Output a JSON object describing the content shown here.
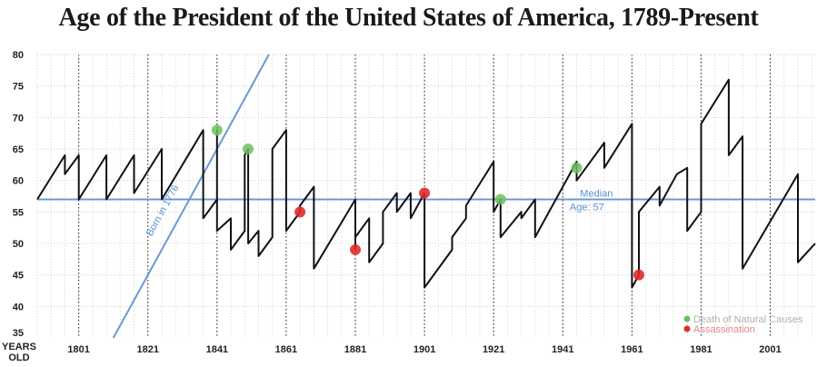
{
  "chart_data": {
    "type": "line",
    "title": "Age of the President of the United States of America, 1789-Present",
    "ylabel": [
      "YEARS",
      "OLD"
    ],
    "xlim": [
      1789,
      2014
    ],
    "ylim": [
      35,
      80
    ],
    "y_ticks": [
      35,
      40,
      45,
      50,
      55,
      60,
      65,
      70,
      75,
      80
    ],
    "x_ticks": [
      1801,
      1821,
      1841,
      1861,
      1881,
      1901,
      1921,
      1941,
      1961,
      1981,
      2001
    ],
    "grid": "dotted vertical and horizontal",
    "series": [
      {
        "name": "Age of the President",
        "color": "#111111",
        "points": [
          [
            1789,
            57
          ],
          [
            1797,
            64
          ],
          [
            1797,
            61
          ],
          [
            1801,
            64
          ],
          [
            1801,
            57
          ],
          [
            1809,
            64
          ],
          [
            1809,
            57
          ],
          [
            1817,
            64
          ],
          [
            1817,
            58
          ],
          [
            1825,
            65
          ],
          [
            1825,
            57
          ],
          [
            1837,
            68
          ],
          [
            1837,
            54
          ],
          [
            1841,
            57
          ],
          [
            1841,
            68
          ],
          [
            1841,
            52
          ],
          [
            1845,
            54
          ],
          [
            1845,
            49
          ],
          [
            1849,
            52
          ],
          [
            1849,
            64
          ],
          [
            1850,
            65
          ],
          [
            1850,
            50
          ],
          [
            1853,
            52
          ],
          [
            1853,
            48
          ],
          [
            1857,
            51
          ],
          [
            1857,
            65
          ],
          [
            1861,
            68
          ],
          [
            1861,
            52
          ],
          [
            1865,
            55
          ],
          [
            1865,
            56
          ],
          [
            1869,
            59
          ],
          [
            1869,
            46
          ],
          [
            1881,
            57
          ],
          [
            1881,
            49
          ],
          [
            1881,
            51
          ],
          [
            1885,
            54
          ],
          [
            1885,
            47
          ],
          [
            1889,
            50
          ],
          [
            1889,
            55
          ],
          [
            1893,
            58
          ],
          [
            1893,
            55
          ],
          [
            1897,
            58
          ],
          [
            1897,
            54
          ],
          [
            1901,
            58
          ],
          [
            1901,
            43
          ],
          [
            1909,
            49
          ],
          [
            1909,
            51
          ],
          [
            1913,
            54
          ],
          [
            1913,
            56
          ],
          [
            1921,
            63
          ],
          [
            1921,
            55
          ],
          [
            1923,
            57
          ],
          [
            1923,
            51
          ],
          [
            1929,
            55
          ],
          [
            1929,
            54
          ],
          [
            1933,
            57
          ],
          [
            1933,
            51
          ],
          [
            1945,
            63
          ],
          [
            1945,
            60
          ],
          [
            1953,
            66
          ],
          [
            1953,
            62
          ],
          [
            1961,
            69
          ],
          [
            1961,
            43
          ],
          [
            1963,
            45
          ],
          [
            1963,
            55
          ],
          [
            1969,
            59
          ],
          [
            1969,
            56
          ],
          [
            1974,
            61
          ],
          [
            1974,
            61
          ],
          [
            1977,
            62
          ],
          [
            1977,
            52
          ],
          [
            1981,
            55
          ],
          [
            1981,
            69
          ],
          [
            1989,
            76
          ],
          [
            1989,
            64
          ],
          [
            1993,
            67
          ],
          [
            1993,
            46
          ],
          [
            2009,
            61
          ],
          [
            2009,
            47
          ],
          [
            2014,
            50
          ]
        ]
      }
    ],
    "median_line": {
      "value": 57,
      "label": "Median",
      "label2": "Age: 57",
      "color": "#6b98d4"
    },
    "born_1776_line": {
      "label": "Born in 1776",
      "color": "#6b98d4",
      "points": [
        [
          1811,
          35
        ],
        [
          1856,
          80
        ]
      ]
    },
    "events": {
      "natural_death": {
        "label": "Death of Natural Causes",
        "color": "#6cbf5f",
        "points": [
          [
            1841,
            68
          ],
          [
            1850,
            65
          ],
          [
            1923,
            57
          ],
          [
            1945,
            62
          ]
        ]
      },
      "assassination": {
        "label": "Assassination",
        "color": "#e02a2a",
        "points": [
          [
            1865,
            55
          ],
          [
            1881,
            49
          ],
          [
            1901,
            58
          ],
          [
            1963,
            45
          ]
        ]
      }
    }
  }
}
